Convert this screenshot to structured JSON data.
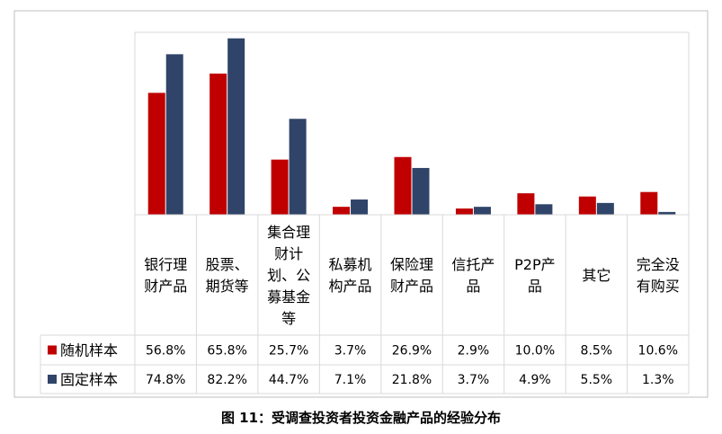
{
  "caption": "图 11：受调查投资者投资金融产品的经验分布",
  "chart_data": {
    "type": "bar",
    "categories": [
      [
        "银行理",
        "财产品"
      ],
      [
        "股票、",
        "期货等"
      ],
      [
        "集合理",
        "财计",
        "划、公",
        "募基金",
        "等"
      ],
      [
        "私募机",
        "构产品"
      ],
      [
        "保险理",
        "财产品"
      ],
      [
        "信托产",
        "品"
      ],
      [
        "P2P产",
        "品"
      ],
      [
        "其它"
      ],
      [
        "完全没",
        "有购买"
      ]
    ],
    "series": [
      {
        "name": "随机样本",
        "color": "#c00000",
        "values": [
          56.8,
          65.8,
          25.7,
          3.7,
          26.9,
          2.9,
          10.0,
          8.5,
          10.6
        ],
        "labels": [
          "56.8%",
          "65.8%",
          "25.7%",
          "3.7%",
          "26.9%",
          "2.9%",
          "10.0%",
          "8.5%",
          "10.6%"
        ]
      },
      {
        "name": "固定样本",
        "color": "#2f4468",
        "values": [
          74.8,
          82.2,
          44.7,
          7.1,
          21.8,
          3.7,
          4.9,
          5.5,
          1.3
        ],
        "labels": [
          "74.8%",
          "82.2%",
          "44.7%",
          "7.1%",
          "21.8%",
          "3.7%",
          "4.9%",
          "5.5%",
          "1.3%"
        ]
      }
    ],
    "ylim": [
      0,
      85
    ],
    "legend": "data-table-left",
    "grid": false
  }
}
